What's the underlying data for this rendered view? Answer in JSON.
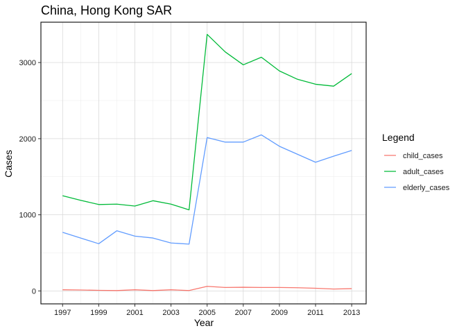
{
  "chart_data": {
    "type": "line",
    "title": "China, Hong Kong SAR",
    "xlabel": "Year",
    "ylabel": "Cases",
    "x": [
      1997,
      1998,
      1999,
      2000,
      2001,
      2002,
      2003,
      2004,
      2005,
      2006,
      2007,
      2008,
      2009,
      2010,
      2011,
      2012,
      2013
    ],
    "xticks": [
      1997,
      1999,
      2001,
      2003,
      2005,
      2007,
      2009,
      2011,
      2013
    ],
    "yticks": [
      0,
      1000,
      2000,
      3000
    ],
    "xlim": [
      1995.8,
      2013.8
    ],
    "ylim": [
      -170,
      3530
    ],
    "grid": true,
    "legend_title": "Legend",
    "legend_position": "right",
    "series": [
      {
        "name": "child_cases",
        "color": "#F8766D",
        "values": [
          15,
          12,
          8,
          5,
          15,
          5,
          15,
          5,
          60,
          45,
          48,
          45,
          45,
          42,
          35,
          25,
          30
        ]
      },
      {
        "name": "adult_cases",
        "color": "#00BA38",
        "values": [
          1250,
          1190,
          1135,
          1140,
          1115,
          1185,
          1140,
          1065,
          3370,
          3140,
          2970,
          3070,
          2890,
          2780,
          2715,
          2690,
          2855
        ]
      },
      {
        "name": "elderly_cases",
        "color": "#619CFF",
        "values": [
          770,
          695,
          620,
          790,
          720,
          695,
          630,
          615,
          2015,
          1955,
          1955,
          2050,
          1900,
          1795,
          1690,
          1770,
          1845
        ]
      }
    ]
  }
}
